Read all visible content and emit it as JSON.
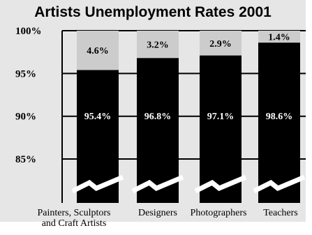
{
  "chart_data": {
    "type": "bar",
    "title": "Artists Unemployment Rates 2001",
    "categories": [
      [
        "Painters, Sculptors",
        "and Craft Artists"
      ],
      [
        "Designers"
      ],
      [
        "Photographers"
      ],
      [
        "Teachers"
      ]
    ],
    "series": [
      {
        "values": [
          95.4,
          96.8,
          97.1,
          98.6
        ],
        "labels": [
          "95.4%",
          "96.8%",
          "97.1%",
          "98.6%"
        ],
        "color": "#000000"
      },
      {
        "values": [
          4.6,
          3.2,
          2.9,
          1.4
        ],
        "labels": [
          "4.6%",
          "3.2%",
          "2.9%",
          "1.4%"
        ],
        "color": "#cccccc"
      }
    ],
    "stacked": true,
    "axis_break": true,
    "ylim": [
      81.5,
      100
    ],
    "yticks": [
      85,
      90,
      95,
      100
    ],
    "ytick_labels": [
      "85%",
      "90%",
      "95%",
      "100%"
    ],
    "grid": "horizontal",
    "xlabel": "",
    "ylabel": ""
  }
}
